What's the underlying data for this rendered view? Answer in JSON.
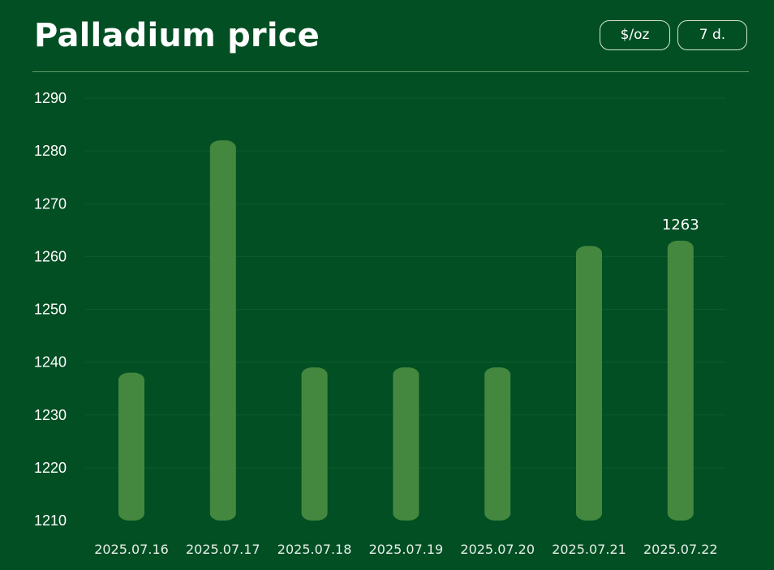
{
  "header": {
    "title": "Palladium price",
    "unit_button": "$/oz",
    "period_button": "7 d."
  },
  "colors": {
    "background": "#024f24",
    "bar": "#44883f",
    "gridline": "#0d5c2c"
  },
  "chart_data": {
    "type": "bar",
    "title": "Palladium price",
    "xlabel": "",
    "ylabel": "",
    "categories": [
      "2025.07.16",
      "2025.07.17",
      "2025.07.18",
      "2025.07.19",
      "2025.07.20",
      "2025.07.21",
      "2025.07.22"
    ],
    "values": [
      1238,
      1282,
      1239,
      1239,
      1239,
      1262,
      1263
    ],
    "ylim": [
      1210,
      1290
    ],
    "yticks": [
      1210,
      1220,
      1230,
      1240,
      1250,
      1260,
      1270,
      1280,
      1290
    ],
    "data_labels": [
      {
        "index": 6,
        "text": "1263"
      }
    ],
    "grid": true,
    "legend": "none"
  }
}
